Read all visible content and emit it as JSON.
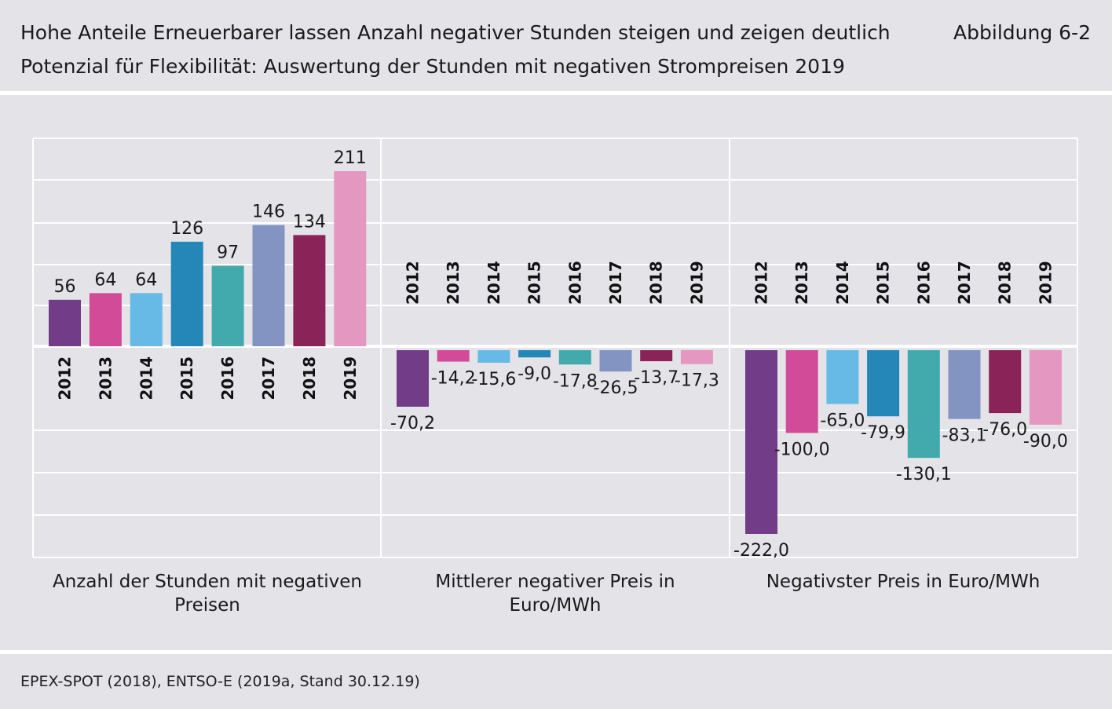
{
  "header": {
    "title_line1": "Hohe Anteile Erneuerbarer lassen Anzahl negativer Stunden steigen und zeigen deutlich",
    "title_line2": "Potenzial für Flexibilität: Auswertung der Stunden mit negativen Strompreisen 2019",
    "figure_label": "Abbildung 6-2"
  },
  "footer": {
    "source": "EPEX-SPOT (2018), ENTSO-E (2019a, Stand 30.12.19)"
  },
  "colors": {
    "2012": "#733c88",
    "2013": "#d24b98",
    "2014": "#66bae5",
    "2015": "#2586b8",
    "2016": "#42a9ad",
    "2017": "#8394c2",
    "2018": "#8a2358",
    "2019": "#e497c1"
  },
  "chart_data": {
    "type": "bar",
    "categories": [
      "2012",
      "2013",
      "2014",
      "2015",
      "2016",
      "2017",
      "2018",
      "2019"
    ],
    "grid": true,
    "panels": [
      {
        "label_lines": [
          "Anzahl der Stunden mit negativen",
          "Preisen"
        ],
        "values": [
          56,
          64,
          64,
          126,
          97,
          146,
          134,
          211
        ],
        "value_labels": [
          "56",
          "64",
          "64",
          "126",
          "97",
          "146",
          "134",
          "211"
        ]
      },
      {
        "label_lines": [
          "Mittlerer negativer Preis in",
          "Euro/MWh"
        ],
        "values": [
          -70.2,
          -14.2,
          -15.6,
          -9.0,
          -17.8,
          -26.5,
          -13.7,
          -17.3
        ],
        "value_labels": [
          "-70,2",
          "-14,2",
          "-15,6",
          "-9,0",
          "-17,8",
          "-26,5",
          "-13,7",
          "-17,3"
        ]
      },
      {
        "label_lines": [
          "Negativster Preis in Euro/MWh"
        ],
        "values": [
          -222.0,
          -100.0,
          -65.0,
          -79.9,
          -130.1,
          -83.1,
          -76.0,
          -90.0
        ],
        "value_labels": [
          "-222,0",
          "-100,0",
          "-65,0",
          "-79,9",
          "-130,1",
          "-83,1",
          "-76,0",
          "-90,0"
        ]
      }
    ]
  }
}
